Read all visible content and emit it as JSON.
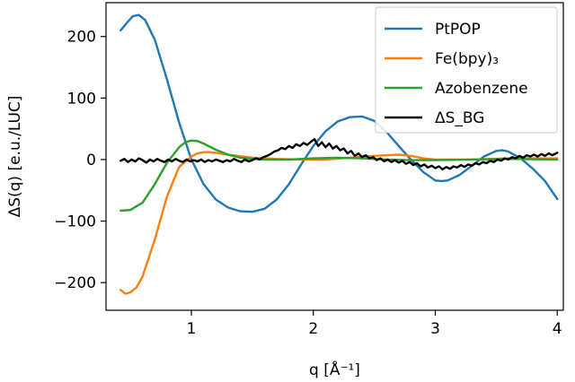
{
  "chart_data": {
    "type": "line",
    "xlabel": "q [Å⁻¹]",
    "ylabel": "ΔS(q) [e.u./LUC]",
    "xlim": [
      0.3,
      4.05
    ],
    "ylim": [
      -245,
      255
    ],
    "xticks": [
      1,
      2,
      3,
      4
    ],
    "yticks": [
      -200,
      -100,
      0,
      100,
      200
    ],
    "grid": false,
    "legend_position": "top-right",
    "series": [
      {
        "name": "PtPOP",
        "color": "#1f77b4",
        "points": [
          [
            0.42,
            210
          ],
          [
            0.47,
            222
          ],
          [
            0.52,
            233
          ],
          [
            0.57,
            235
          ],
          [
            0.62,
            227
          ],
          [
            0.7,
            195
          ],
          [
            0.8,
            130
          ],
          [
            0.9,
            60
          ],
          [
            1.0,
            0
          ],
          [
            1.1,
            -40
          ],
          [
            1.2,
            -65
          ],
          [
            1.3,
            -78
          ],
          [
            1.4,
            -84
          ],
          [
            1.5,
            -85
          ],
          [
            1.6,
            -80
          ],
          [
            1.7,
            -65
          ],
          [
            1.8,
            -40
          ],
          [
            1.9,
            -8
          ],
          [
            2.0,
            22
          ],
          [
            2.1,
            46
          ],
          [
            2.2,
            62
          ],
          [
            2.3,
            69
          ],
          [
            2.4,
            70
          ],
          [
            2.5,
            63
          ],
          [
            2.6,
            45
          ],
          [
            2.7,
            22
          ],
          [
            2.8,
            0
          ],
          [
            2.9,
            -20
          ],
          [
            3.0,
            -34
          ],
          [
            3.05,
            -35
          ],
          [
            3.1,
            -34
          ],
          [
            3.2,
            -25
          ],
          [
            3.3,
            -10
          ],
          [
            3.4,
            5
          ],
          [
            3.5,
            14
          ],
          [
            3.55,
            15
          ],
          [
            3.6,
            13
          ],
          [
            3.7,
            2
          ],
          [
            3.8,
            -15
          ],
          [
            3.9,
            -35
          ],
          [
            4.0,
            -64
          ]
        ]
      },
      {
        "name": "Fe(bpy)₃",
        "color": "#ff7f0e",
        "points": [
          [
            0.42,
            -212
          ],
          [
            0.46,
            -218
          ],
          [
            0.5,
            -216
          ],
          [
            0.55,
            -208
          ],
          [
            0.6,
            -190
          ],
          [
            0.7,
            -130
          ],
          [
            0.8,
            -60
          ],
          [
            0.9,
            -12
          ],
          [
            1.0,
            5
          ],
          [
            1.05,
            10
          ],
          [
            1.1,
            12
          ],
          [
            1.15,
            12
          ],
          [
            1.2,
            11
          ],
          [
            1.3,
            8
          ],
          [
            1.5,
            3
          ],
          [
            1.7,
            1
          ],
          [
            1.9,
            0
          ],
          [
            2.1,
            0
          ],
          [
            2.3,
            3
          ],
          [
            2.5,
            6
          ],
          [
            2.7,
            8
          ],
          [
            2.8,
            6
          ],
          [
            2.9,
            2
          ],
          [
            3.0,
            0
          ],
          [
            3.3,
            0
          ],
          [
            3.6,
            2
          ],
          [
            4.0,
            2
          ]
        ]
      },
      {
        "name": "Azobenzene",
        "color": "#2ca02c",
        "points": [
          [
            0.42,
            -83
          ],
          [
            0.5,
            -82
          ],
          [
            0.6,
            -70
          ],
          [
            0.7,
            -40
          ],
          [
            0.8,
            -5
          ],
          [
            0.9,
            20
          ],
          [
            0.95,
            28
          ],
          [
            1.0,
            31
          ],
          [
            1.05,
            30
          ],
          [
            1.1,
            26
          ],
          [
            1.2,
            16
          ],
          [
            1.3,
            8
          ],
          [
            1.4,
            3
          ],
          [
            1.6,
            0
          ],
          [
            1.8,
            0
          ],
          [
            2.0,
            2
          ],
          [
            2.2,
            3
          ],
          [
            2.4,
            2
          ],
          [
            2.6,
            0
          ],
          [
            2.8,
            -1
          ],
          [
            3.0,
            -1
          ],
          [
            3.3,
            0
          ],
          [
            3.6,
            1
          ],
          [
            4.0,
            0
          ]
        ]
      },
      {
        "name": "ΔS_BG",
        "color": "#000000",
        "points": [
          [
            0.42,
            -2
          ],
          [
            0.45,
            1
          ],
          [
            0.48,
            -4
          ],
          [
            0.51,
            0
          ],
          [
            0.54,
            -3
          ],
          [
            0.57,
            2
          ],
          [
            0.6,
            -1
          ],
          [
            0.63,
            -5
          ],
          [
            0.66,
            0
          ],
          [
            0.69,
            -3
          ],
          [
            0.72,
            1
          ],
          [
            0.75,
            -2
          ],
          [
            0.78,
            -4
          ],
          [
            0.81,
            0
          ],
          [
            0.84,
            -3
          ],
          [
            0.87,
            1
          ],
          [
            0.9,
            -2
          ],
          [
            0.93,
            -4
          ],
          [
            0.96,
            0
          ],
          [
            0.99,
            -3
          ],
          [
            1.02,
            -1
          ],
          [
            1.05,
            -3
          ],
          [
            1.08,
            0
          ],
          [
            1.11,
            -4
          ],
          [
            1.14,
            -1
          ],
          [
            1.17,
            -3
          ],
          [
            1.2,
            0
          ],
          [
            1.23,
            -2
          ],
          [
            1.26,
            -4
          ],
          [
            1.29,
            -1
          ],
          [
            1.32,
            -3
          ],
          [
            1.35,
            1
          ],
          [
            1.38,
            -2
          ],
          [
            1.41,
            -4
          ],
          [
            1.44,
            0
          ],
          [
            1.47,
            -3
          ],
          [
            1.5,
            -1
          ],
          [
            1.53,
            2
          ],
          [
            1.56,
            0
          ],
          [
            1.59,
            4
          ],
          [
            1.62,
            6
          ],
          [
            1.65,
            9
          ],
          [
            1.68,
            13
          ],
          [
            1.71,
            15
          ],
          [
            1.74,
            19
          ],
          [
            1.77,
            17
          ],
          [
            1.8,
            22
          ],
          [
            1.83,
            19
          ],
          [
            1.86,
            25
          ],
          [
            1.89,
            22
          ],
          [
            1.92,
            27
          ],
          [
            1.95,
            24
          ],
          [
            1.98,
            29
          ],
          [
            2.01,
            33
          ],
          [
            2.04,
            22
          ],
          [
            2.07,
            28
          ],
          [
            2.1,
            20
          ],
          [
            2.13,
            26
          ],
          [
            2.16,
            18
          ],
          [
            2.19,
            22
          ],
          [
            2.22,
            15
          ],
          [
            2.25,
            18
          ],
          [
            2.28,
            10
          ],
          [
            2.31,
            14
          ],
          [
            2.34,
            6
          ],
          [
            2.37,
            10
          ],
          [
            2.4,
            4
          ],
          [
            2.43,
            7
          ],
          [
            2.46,
            2
          ],
          [
            2.49,
            4
          ],
          [
            2.52,
            -1
          ],
          [
            2.55,
            2
          ],
          [
            2.58,
            -3
          ],
          [
            2.61,
            0
          ],
          [
            2.64,
            -4
          ],
          [
            2.67,
            -1
          ],
          [
            2.7,
            -5
          ],
          [
            2.73,
            -2
          ],
          [
            2.76,
            -7
          ],
          [
            2.79,
            -4
          ],
          [
            2.82,
            -9
          ],
          [
            2.85,
            -6
          ],
          [
            2.88,
            -11
          ],
          [
            2.91,
            -8
          ],
          [
            2.94,
            -13
          ],
          [
            2.97,
            -10
          ],
          [
            3.0,
            -14
          ],
          [
            3.03,
            -11
          ],
          [
            3.06,
            -16
          ],
          [
            3.09,
            -12
          ],
          [
            3.12,
            -15
          ],
          [
            3.15,
            -11
          ],
          [
            3.18,
            -13
          ],
          [
            3.21,
            -9
          ],
          [
            3.24,
            -12
          ],
          [
            3.27,
            -8
          ],
          [
            3.3,
            -10
          ],
          [
            3.33,
            -6
          ],
          [
            3.36,
            -8
          ],
          [
            3.39,
            -4
          ],
          [
            3.42,
            -6
          ],
          [
            3.45,
            -2
          ],
          [
            3.48,
            -4
          ],
          [
            3.51,
            0
          ],
          [
            3.54,
            -2
          ],
          [
            3.57,
            2
          ],
          [
            3.6,
            0
          ],
          [
            3.63,
            4
          ],
          [
            3.66,
            2
          ],
          [
            3.69,
            6
          ],
          [
            3.72,
            3
          ],
          [
            3.75,
            7
          ],
          [
            3.78,
            5
          ],
          [
            3.81,
            8
          ],
          [
            3.84,
            5
          ],
          [
            3.87,
            9
          ],
          [
            3.9,
            6
          ],
          [
            3.93,
            10
          ],
          [
            3.96,
            7
          ],
          [
            4.0,
            11
          ]
        ]
      }
    ]
  }
}
